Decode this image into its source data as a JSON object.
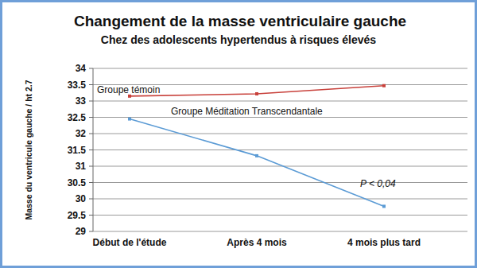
{
  "chart_data": {
    "type": "line",
    "title": "Changement de la masse ventriculaire gauche",
    "subtitle": "Chez des adolescents hypertendus à risques élevés",
    "y_label": "Masse du ventricule gauche / ht 2.7",
    "categories": [
      "Début de l'étude",
      "Après 4 mois",
      "4 mois plus tard"
    ],
    "series": [
      {
        "name": "Groupe témoin",
        "color": "#c8413b",
        "values": [
          33.15,
          33.22,
          33.47
        ]
      },
      {
        "name": "Groupe Méditation Transcendantale",
        "color": "#5b9bd5",
        "values": [
          32.45,
          31.32,
          29.77
        ]
      }
    ],
    "annotation": "P < 0,04",
    "ylim": [
      29,
      34
    ],
    "yticks": [
      29,
      29.5,
      30,
      30.5,
      31,
      31.5,
      32,
      32.5,
      33,
      33.5,
      34
    ],
    "grid": true,
    "marker": "square"
  }
}
